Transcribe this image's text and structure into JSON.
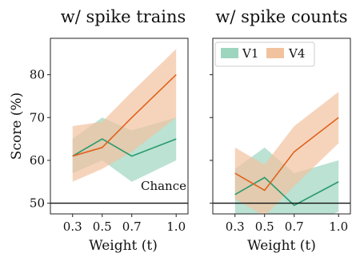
{
  "chart_data": [
    {
      "type": "line",
      "title": "w/ spike trains",
      "xlabel": "Weight (t)",
      "ylabel": "Score (%)",
      "x": [
        0.3,
        0.5,
        0.7,
        1.0
      ],
      "x_tick_labels": [
        "0.3",
        "0.5",
        "0.7",
        "1.0"
      ],
      "y_tick_labels": [
        "50",
        "60",
        "70",
        "80"
      ],
      "y_ticks": [
        50,
        60,
        70,
        80
      ],
      "xlim": [
        0.15,
        1.08
      ],
      "ylim": [
        47.5,
        88.5
      ],
      "grid": false,
      "series": [
        {
          "name": "V1",
          "color": "#2a9a6e",
          "band_color": "#9ed5bf",
          "values": [
            61,
            65,
            61,
            65
          ],
          "lower": [
            57,
            60,
            55,
            60
          ],
          "upper": [
            65,
            70,
            67,
            70
          ]
        },
        {
          "name": "V4",
          "color": "#e0621c",
          "band_color": "#f2c29f",
          "values": [
            61,
            63,
            70,
            80
          ],
          "lower": [
            55,
            58,
            62,
            70
          ],
          "upper": [
            68,
            69,
            76,
            86
          ]
        }
      ],
      "hline": {
        "y": 50,
        "label": "Chance"
      }
    },
    {
      "type": "line",
      "title": "w/ spike counts",
      "xlabel": "Weight (t)",
      "x": [
        0.3,
        0.5,
        0.7,
        1.0
      ],
      "x_tick_labels": [
        "0.3",
        "0.5",
        "0.7",
        "1.0"
      ],
      "y_ticks": [
        50,
        60,
        70,
        80
      ],
      "xlim": [
        0.15,
        1.08
      ],
      "ylim": [
        47.5,
        88.5
      ],
      "grid": false,
      "legend": {
        "placement": "top-left",
        "entries": [
          "V1",
          "V4"
        ]
      },
      "series": [
        {
          "name": "V1",
          "color": "#2a9a6e",
          "band_color": "#9ed5bf",
          "values": [
            52,
            56,
            49.5,
            55
          ],
          "lower": [
            46,
            48,
            44,
            48
          ],
          "upper": [
            58,
            63,
            57,
            60
          ]
        },
        {
          "name": "V4",
          "color": "#e0621c",
          "band_color": "#f2c29f",
          "values": [
            57,
            53,
            62,
            70
          ],
          "lower": [
            51,
            47,
            54,
            64
          ],
          "upper": [
            63,
            59,
            68,
            76
          ]
        }
      ],
      "hline": {
        "y": 50
      }
    }
  ]
}
